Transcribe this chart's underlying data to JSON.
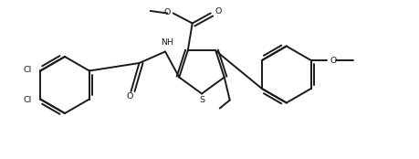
{
  "bg_color": "#ffffff",
  "line_color": "#1a1a1a",
  "line_width": 1.4,
  "figsize": [
    4.6,
    1.74
  ],
  "dpi": 100,
  "xlim": [
    0,
    9.2
  ],
  "ylim": [
    0,
    3.48
  ]
}
